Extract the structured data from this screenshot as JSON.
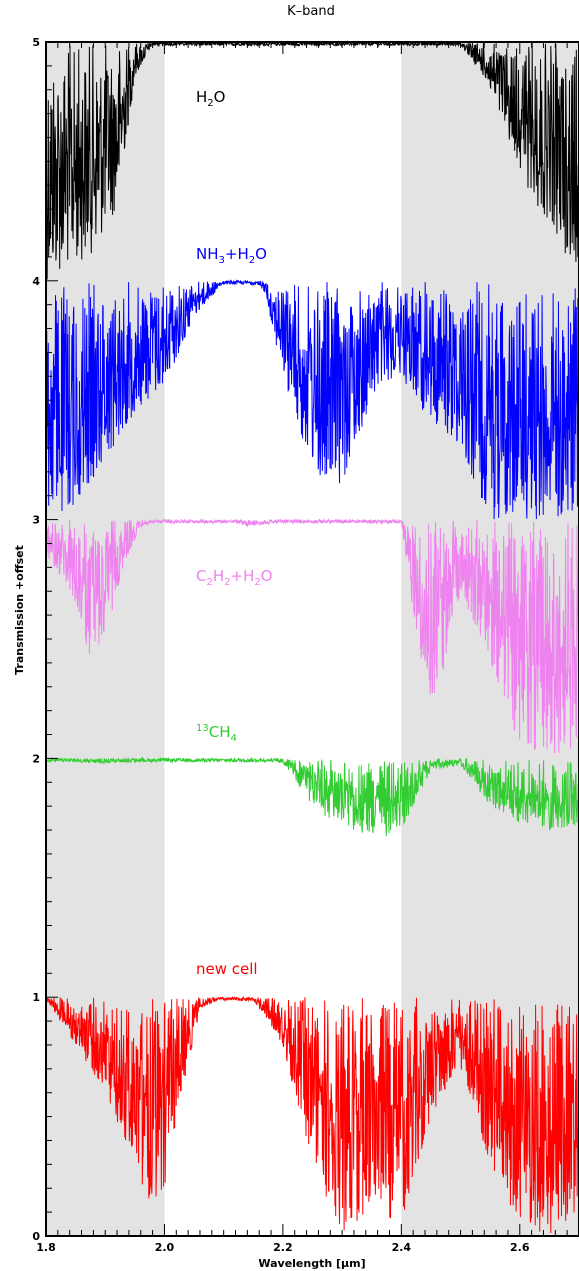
{
  "chart_data": {
    "type": "line",
    "title": "K–band",
    "xlabel": "Wavelength [μm]",
    "ylabel": "Transmission +offset",
    "xlim": [
      1.8,
      2.7
    ],
    "ylim": [
      0,
      5
    ],
    "x_ticks": [
      "1.8",
      "2.0",
      "2.2",
      "2.4",
      "2.6"
    ],
    "y_ticks": [
      "0",
      "1",
      "2",
      "3",
      "4",
      "5"
    ],
    "shaded_bands": [
      [
        1.8,
        2.0
      ],
      [
        2.4,
        2.7
      ]
    ],
    "series": [
      {
        "name": "H₂O",
        "label": {
          "parts": [
            [
              "H",
              ""
            ],
            [
              "2",
              "sub"
            ],
            [
              "O",
              ""
            ]
          ]
        },
        "color": "#000000",
        "offset": 4,
        "envelope": [
          [
            1.8,
            0.0
          ],
          [
            1.84,
            0.05
          ],
          [
            1.88,
            0.12
          ],
          [
            1.92,
            0.3
          ],
          [
            1.95,
            0.85
          ],
          [
            1.98,
            0.99
          ],
          [
            2.0,
            1.0
          ],
          [
            2.3,
            1.0
          ],
          [
            2.4,
            1.0
          ],
          [
            2.5,
            0.99
          ],
          [
            2.54,
            0.85
          ],
          [
            2.58,
            0.6
          ],
          [
            2.62,
            0.35
          ],
          [
            2.66,
            0.2
          ],
          [
            2.7,
            0.0
          ]
        ]
      },
      {
        "name": "NH₃+H₂O",
        "label": {
          "parts": [
            [
              "NH",
              ""
            ],
            [
              "3",
              "sub"
            ],
            [
              "+H",
              ""
            ],
            [
              "2",
              "sub"
            ],
            [
              "O",
              ""
            ]
          ]
        },
        "color": "#0000ff",
        "offset": 3,
        "envelope": [
          [
            1.8,
            0.0
          ],
          [
            1.85,
            0.05
          ],
          [
            1.9,
            0.25
          ],
          [
            1.95,
            0.45
          ],
          [
            2.0,
            0.55
          ],
          [
            2.05,
            0.85
          ],
          [
            2.1,
            0.99
          ],
          [
            2.15,
            1.0
          ],
          [
            2.17,
            0.95
          ],
          [
            2.2,
            0.6
          ],
          [
            2.23,
            0.35
          ],
          [
            2.26,
            0.15
          ],
          [
            2.3,
            0.15
          ],
          [
            2.33,
            0.35
          ],
          [
            2.36,
            0.55
          ],
          [
            2.4,
            0.6
          ],
          [
            2.45,
            0.4
          ],
          [
            2.5,
            0.3
          ],
          [
            2.55,
            0.0
          ],
          [
            2.7,
            0.0
          ]
        ]
      },
      {
        "name": "C₂H₂+H₂O",
        "label": {
          "parts": [
            [
              "C",
              ""
            ],
            [
              "2",
              "sub"
            ],
            [
              "H",
              ""
            ],
            [
              "2",
              "sub"
            ],
            [
              "+H",
              ""
            ],
            [
              "2",
              "sub"
            ],
            [
              "O",
              ""
            ]
          ]
        },
        "color": "#ee82ee",
        "offset": 2,
        "envelope": [
          [
            1.8,
            0.85
          ],
          [
            1.84,
            0.7
          ],
          [
            1.87,
            0.4
          ],
          [
            1.9,
            0.5
          ],
          [
            1.93,
            0.8
          ],
          [
            1.96,
            0.97
          ],
          [
            2.0,
            1.0
          ],
          [
            2.12,
            0.99
          ],
          [
            2.14,
            0.97
          ],
          [
            2.2,
            0.99
          ],
          [
            2.4,
            0.99
          ],
          [
            2.42,
            0.6
          ],
          [
            2.44,
            0.3
          ],
          [
            2.46,
            0.2
          ],
          [
            2.48,
            0.5
          ],
          [
            2.5,
            0.7
          ],
          [
            2.55,
            0.4
          ],
          [
            2.6,
            0.05
          ],
          [
            2.65,
            0.0
          ],
          [
            2.7,
            0.05
          ]
        ]
      },
      {
        "name": "¹³CH₄",
        "label": {
          "parts": [
            [
              "13",
              "sup"
            ],
            [
              "CH",
              ""
            ],
            [
              "4",
              "sub"
            ]
          ]
        },
        "color": "#33cc33",
        "offset": 1,
        "envelope": [
          [
            1.8,
            0.99
          ],
          [
            1.9,
            0.98
          ],
          [
            2.0,
            0.99
          ],
          [
            2.15,
            1.0
          ],
          [
            2.2,
            0.98
          ],
          [
            2.25,
            0.8
          ],
          [
            2.3,
            0.7
          ],
          [
            2.35,
            0.68
          ],
          [
            2.38,
            0.67
          ],
          [
            2.4,
            0.7
          ],
          [
            2.45,
            0.95
          ],
          [
            2.5,
            0.97
          ],
          [
            2.55,
            0.8
          ],
          [
            2.6,
            0.72
          ],
          [
            2.65,
            0.7
          ],
          [
            2.7,
            0.72
          ]
        ]
      },
      {
        "name": "new cell",
        "label": {
          "parts": [
            [
              "new cell",
              ""
            ]
          ]
        },
        "color": "#ff0000",
        "offset": 0,
        "envelope": [
          [
            1.8,
            0.99
          ],
          [
            1.85,
            0.8
          ],
          [
            1.9,
            0.6
          ],
          [
            1.95,
            0.3
          ],
          [
            1.98,
            0.1
          ],
          [
            2.0,
            0.2
          ],
          [
            2.03,
            0.6
          ],
          [
            2.06,
            0.95
          ],
          [
            2.1,
            1.0
          ],
          [
            2.15,
            0.99
          ],
          [
            2.2,
            0.8
          ],
          [
            2.25,
            0.3
          ],
          [
            2.3,
            0.0
          ],
          [
            2.35,
            0.1
          ],
          [
            2.4,
            0.05
          ],
          [
            2.45,
            0.5
          ],
          [
            2.5,
            0.7
          ],
          [
            2.55,
            0.3
          ],
          [
            2.6,
            0.05
          ],
          [
            2.65,
            0.0
          ],
          [
            2.7,
            0.1
          ]
        ]
      }
    ]
  }
}
